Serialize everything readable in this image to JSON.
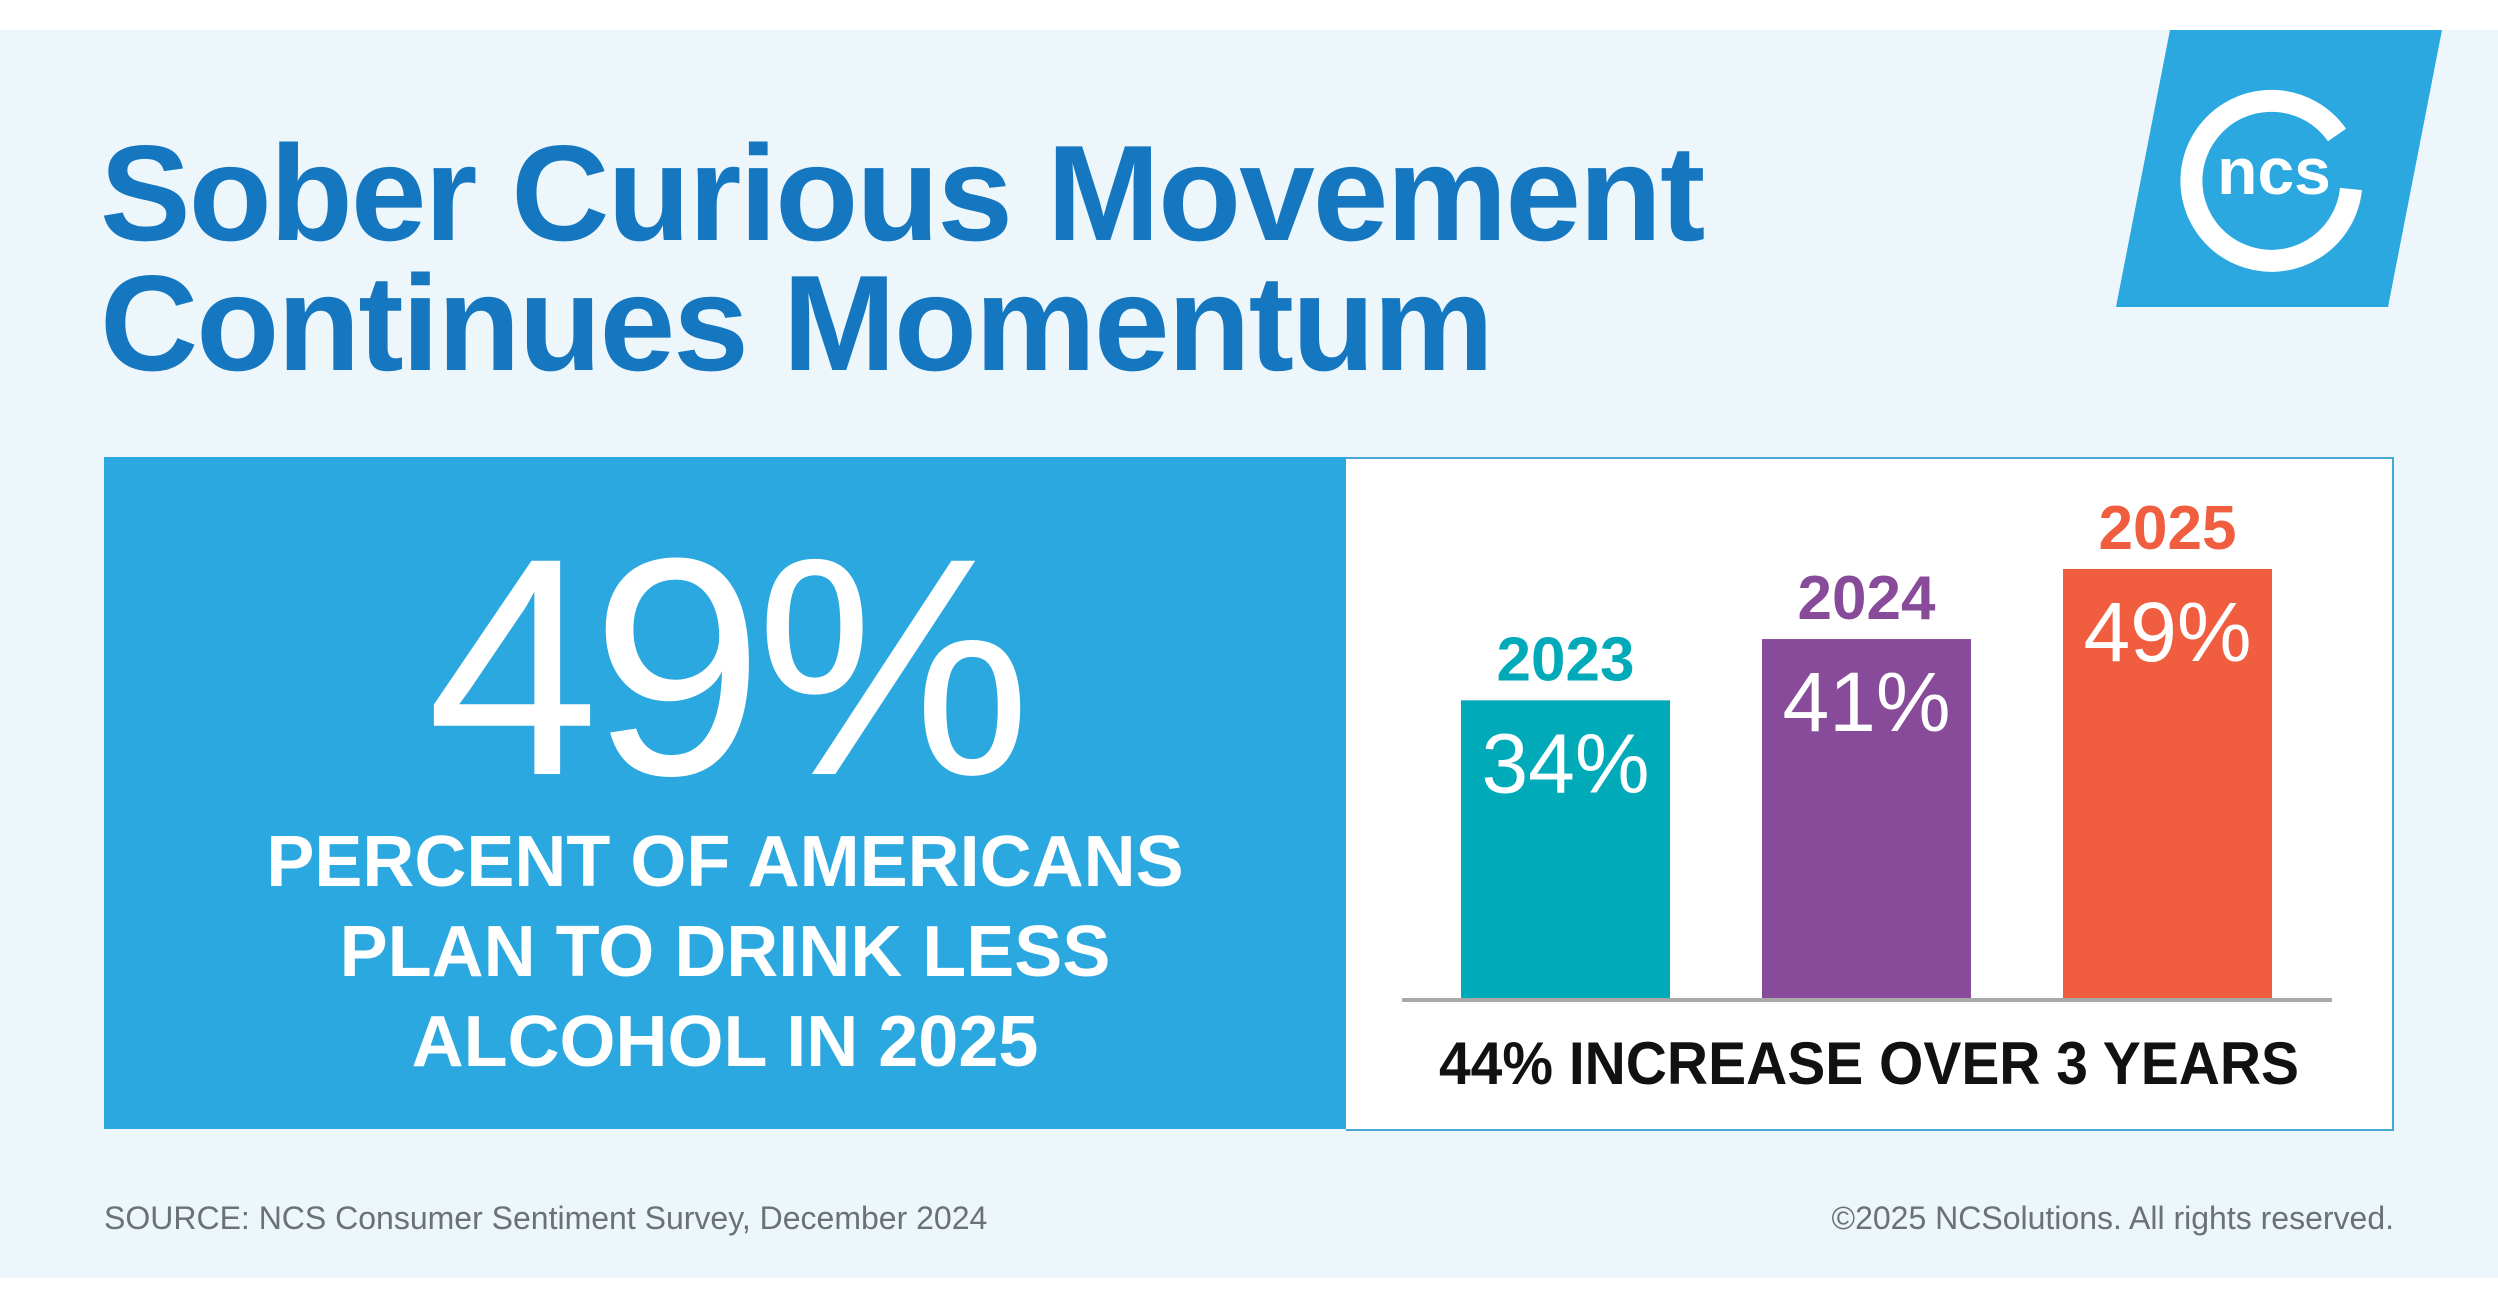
{
  "title": {
    "line1": "Sober Curious Movement",
    "line2": "Continues Momentum"
  },
  "logo": {
    "text": "ncs",
    "icon": "ncs-logo-icon",
    "color": "#2aa8df"
  },
  "highlight": {
    "value": "49%",
    "line1": "PERCENT OF AMERICANS",
    "line2": "PLAN TO DRINK LESS",
    "line3": "ALCOHOL IN 2025",
    "color": "#2aa8df"
  },
  "chart_data": {
    "type": "bar",
    "categories": [
      "2023",
      "2024",
      "2025"
    ],
    "values": [
      34,
      41,
      49
    ],
    "value_labels": [
      "34%",
      "41%",
      "49%"
    ],
    "colors": [
      "#00aab8",
      "#884b9a",
      "#f05d3f"
    ],
    "caption": "44% INCREASE OVER 3 YEARS",
    "ylim": [
      0,
      49
    ],
    "grid": false,
    "legend": "none"
  },
  "footer": {
    "source": "SOURCE: NCS Consumer Sentiment Survey, December 2024",
    "copyright": "©2025 NCSolutions. All rights reserved."
  }
}
